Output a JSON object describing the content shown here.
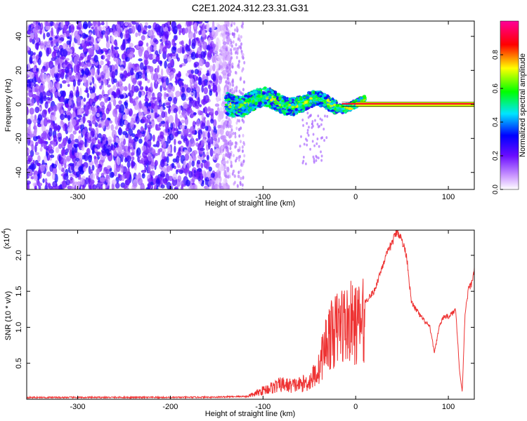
{
  "page_title": "C2E1.2024.312.23.31.G31",
  "chart_data": [
    {
      "type": "heatmap",
      "xlabel": "Height of straight line (km)",
      "ylabel": "Frequency (Hz)",
      "xlim": [
        -355,
        128
      ],
      "ylim": [
        -50,
        49
      ],
      "xticks": [
        -300,
        -200,
        -100,
        0,
        100
      ],
      "yticks": [
        -40,
        -20,
        0,
        20,
        40
      ],
      "grid": false,
      "colorbar": {
        "label": "Normalized spectral amplitude",
        "range": [
          0,
          1
        ],
        "ticks": [
          0.0,
          0.2,
          0.4,
          0.6,
          0.8
        ],
        "tick_labels": [
          "0.0",
          "0.2",
          "0.4",
          "0.6",
          "0.8"
        ],
        "colormap": [
          "#ffffff",
          "#8a2be2",
          "#0000ff",
          "#00e5ff",
          "#00ff00",
          "#ffff00",
          "#ff0000",
          "#ff00aa"
        ]
      },
      "regions": [
        {
          "x": [
            -355,
            -135
          ],
          "y": [
            -50,
            49
          ],
          "description_value": 0.25
        },
        {
          "x": [
            -140,
            -20
          ],
          "y": [
            -10,
            10
          ],
          "description_value": 0.45
        },
        {
          "x": [
            -20,
            128
          ],
          "y": [
            -1.5,
            1.5
          ],
          "description_value": 0.85
        }
      ]
    },
    {
      "type": "line",
      "xlabel": "Height of straight line (km)",
      "ylabel": "SNR (10 * v/v)",
      "y_multiplier_label": "(x10",
      "y_multiplier_exp": "4",
      "xlim": [
        -355,
        128
      ],
      "ylim": [
        0,
        23500
      ],
      "xticks": [
        -300,
        -200,
        -100,
        0,
        100
      ],
      "yticks": [
        5000,
        10000,
        15000,
        20000
      ],
      "ytick_labels": [
        "0.5",
        "1.0",
        "1.5",
        "2.0"
      ],
      "color": "#ee3333",
      "series": [
        {
          "x": [
            -355,
            -300,
            -250,
            -200,
            -150,
            -120,
            -110,
            -100,
            -90,
            -80,
            -70,
            -60,
            -50,
            -40,
            -35,
            -30,
            -25,
            -20,
            -15,
            -10,
            -5,
            0,
            10,
            20,
            30,
            40,
            45,
            50,
            55,
            60,
            70,
            80,
            85,
            90,
            95,
            100,
            105,
            108,
            112,
            115,
            118,
            122,
            125,
            128
          ],
          "y": [
            250,
            250,
            260,
            250,
            300,
            400,
            800,
            1500,
            2000,
            2500,
            2300,
            2500,
            3000,
            5000,
            8000,
            10500,
            11000,
            12000,
            13000,
            12500,
            13000,
            12500,
            13500,
            15000,
            19000,
            22000,
            23500,
            22000,
            20000,
            13500,
            11500,
            10000,
            6500,
            10000,
            11500,
            11500,
            12000,
            12500,
            4000,
            1000,
            12000,
            15500,
            16000,
            18000
          ]
        }
      ]
    }
  ]
}
